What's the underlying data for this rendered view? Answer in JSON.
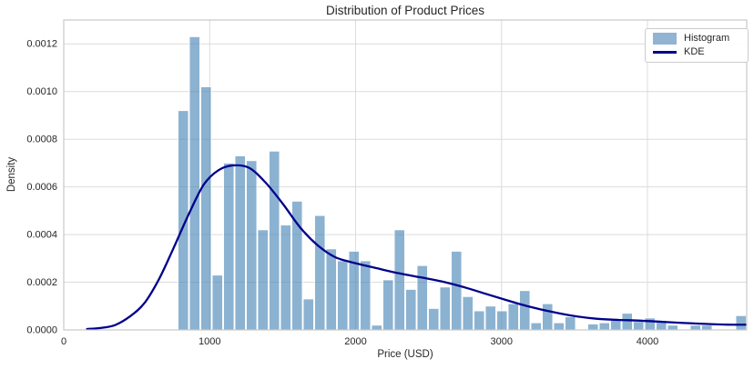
{
  "figure": {
    "title": "Distribution of Product Prices",
    "xlabel": "Price (USD)",
    "ylabel": "Density"
  },
  "legend": {
    "position": "upper right",
    "items": [
      {
        "label": "Histogram",
        "swatch": "patch",
        "color": "#90b4d2"
      },
      {
        "label": "KDE",
        "swatch": "line",
        "color": "#00008b"
      }
    ]
  },
  "chart_data": {
    "type": "bar",
    "subtype": "histogram-with-kde",
    "title": "Distribution of Product Prices",
    "xlabel": "Price (USD)",
    "ylabel": "Density",
    "xlim": [
      0,
      4680
    ],
    "ylim": [
      0,
      0.0013
    ],
    "x_ticks": [
      0,
      1000,
      2000,
      3000,
      4000
    ],
    "x_tick_labels": [
      "0",
      "1000",
      "2000",
      "3000",
      "4000"
    ],
    "y_ticks": [
      0,
      0.0002,
      0.0004,
      0.0006,
      0.0008,
      0.001,
      0.0012
    ],
    "y_tick_labels": [
      "0.0000",
      "0.0002",
      "0.0004",
      "0.0006",
      "0.0008",
      "0.0010",
      "0.0012"
    ],
    "grid": true,
    "legend_position": "upper right",
    "series": [
      {
        "name": "Histogram",
        "type": "bar",
        "bin_start": 780,
        "bin_width": 78,
        "densities": [
          0.00092,
          0.00123,
          0.00102,
          0.00023,
          0.0007,
          0.00073,
          0.00071,
          0.00042,
          0.00075,
          0.00044,
          0.00054,
          0.00013,
          0.00048,
          0.00034,
          0.00029,
          0.00033,
          0.00029,
          2e-05,
          0.00021,
          0.00042,
          0.00017,
          0.00027,
          9e-05,
          0.00018,
          0.00033,
          0.00014,
          8e-05,
          0.0001,
          8e-05,
          0.00011,
          0.000165,
          3e-05,
          0.00011,
          3e-05,
          5.5e-05,
          0,
          2.5e-05,
          3e-05,
          4e-05,
          7e-05,
          3.5e-05,
          5e-05,
          4e-05,
          2e-05,
          0,
          2e-05,
          2e-05,
          0,
          0,
          6e-05
        ]
      },
      {
        "name": "KDE",
        "type": "line",
        "x": [
          160,
          250,
          350,
          450,
          550,
          650,
          750,
          860,
          960,
          1060,
          1160,
          1270,
          1380,
          1500,
          1620,
          1740,
          1860,
          2000,
          2150,
          2300,
          2450,
          2600,
          2750,
          2900,
          3050,
          3200,
          3350,
          3500,
          3650,
          3800,
          3950,
          4100,
          4250,
          4400,
          4550,
          4680
        ],
        "y": [
          4e-06,
          8e-06,
          2e-05,
          5.5e-05,
          0.00011,
          0.00021,
          0.00034,
          0.00049,
          0.00061,
          0.00067,
          0.00069,
          0.00068,
          0.00062,
          0.00053,
          0.00043,
          0.000355,
          0.000305,
          0.00028,
          0.000258,
          0.000237,
          0.00022,
          0.000202,
          0.000178,
          0.00015,
          0.000122,
          9.6e-05,
          7.5e-05,
          5.8e-05,
          4.7e-05,
          4.2e-05,
          3.9e-05,
          3.4e-05,
          2.9e-05,
          2.5e-05,
          2.2e-05,
          2.2e-05
        ]
      }
    ],
    "colors": {
      "bar_fill": "rgba(70,130,180,0.62)",
      "bar_fill_solid": "#90b4d2",
      "bar_edge": "#ffffff",
      "kde_line": "#00008b",
      "grid": "#dcdcdc",
      "spine": "#c9c9c9",
      "text": "#262626",
      "background": "#ffffff"
    }
  }
}
